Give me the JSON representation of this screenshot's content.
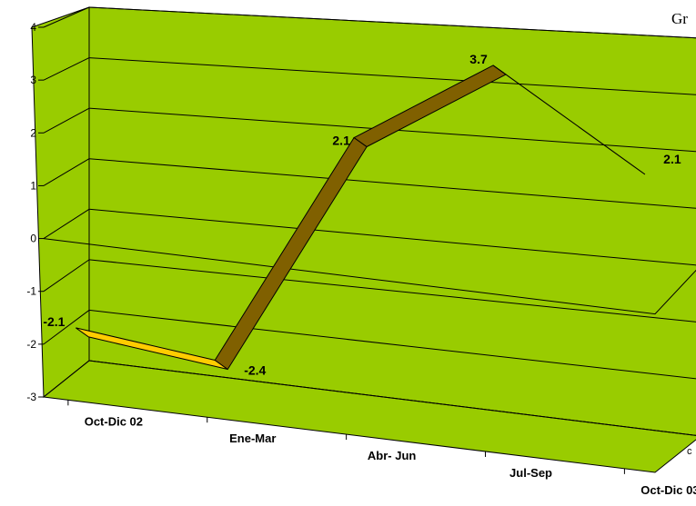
{
  "chart_data": {
    "type": "line",
    "style": "3d-ribbon",
    "title_fragment": "Gr",
    "series_axis_fragment": "c",
    "categories": [
      "Oct-Dic 02",
      "Ene-Mar",
      "Abr- Jun",
      "Jul-Sep",
      "Oct-Dic 03"
    ],
    "series": [
      {
        "values": [
          -2.1,
          -2.4,
          2.1,
          3.7,
          2.1
        ]
      }
    ],
    "data_labels": [
      "-2.1",
      "-2.4",
      "2.1",
      "3.7",
      "2.1"
    ],
    "y_ticks": [
      "4",
      "3",
      "2",
      "1",
      "0",
      "-1",
      "-2",
      "-3"
    ],
    "ylim": [
      -3,
      4
    ],
    "grid": true,
    "colors": {
      "wall": "#99cc00",
      "ribbon_top": "#ffcc00",
      "ribbon_side": "#806000"
    }
  }
}
